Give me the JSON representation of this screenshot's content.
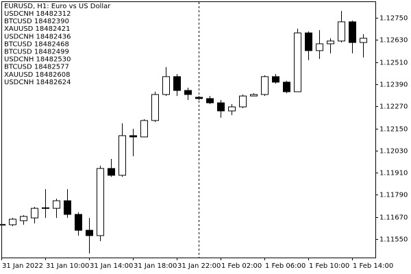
{
  "chart_data": {
    "type": "candlestick",
    "title": "EURUSD, H1:  Euro vs US Dollar",
    "annotations": [
      "USDCNH 18482312",
      "BTCUSD 18482390",
      "XAUUSD 18482421",
      "USDCNH 18482436",
      "BTCUSD 18482468",
      "BTCUSD 18482499",
      "USDCNH 18482530",
      "BTCUSD 18482577",
      "XAUUSD 18482608",
      "USDCNH 18482624"
    ],
    "categories": [
      "31 Jan 2022",
      null,
      null,
      null,
      "31 Jan 10:00",
      null,
      null,
      null,
      "31 Jan 14:00",
      null,
      null,
      null,
      "31 Jan 18:00",
      null,
      null,
      null,
      "31 Jan 22:00",
      null,
      null,
      null,
      "1 Feb 02:00",
      null,
      null,
      null,
      "1 Feb 06:00",
      null,
      null,
      null,
      "1 Feb 10:00",
      null,
      null,
      null,
      "1 Feb 14:00",
      null
    ],
    "open": [
      1.11625,
      1.11628,
      1.1165,
      1.11665,
      1.11717,
      1.11717,
      1.11758,
      1.11684,
      1.11598,
      1.11569,
      1.11933,
      1.11896,
      1.12111,
      1.12104,
      1.12193,
      1.12334,
      1.12431,
      1.12356,
      1.12319,
      1.12312,
      1.12289,
      1.12245,
      1.12267,
      1.12326,
      1.12334,
      1.12431,
      1.12401,
      1.12349,
      1.12668,
      1.12572,
      1.12609,
      1.12624,
      1.12728,
      1.12616
    ],
    "high": [
      1.11635,
      1.11665,
      1.1168,
      1.11725,
      1.11821,
      1.11769,
      1.11821,
      1.11695,
      1.11665,
      1.11948,
      1.11985,
      1.12178,
      1.12148,
      1.122,
      1.12349,
      1.12483,
      1.12445,
      1.12371,
      1.12326,
      1.12326,
      1.12304,
      1.12282,
      1.12334,
      1.12341,
      1.12438,
      1.12445,
      1.12408,
      1.12691,
      1.12676,
      1.12683,
      1.12639,
      1.12787,
      1.12735,
      1.12661
    ],
    "low": [
      1.1162,
      1.1162,
      1.11628,
      1.11635,
      1.11665,
      1.11665,
      1.11665,
      1.11569,
      1.11472,
      1.11539,
      1.11888,
      1.11888,
      1.11999,
      1.12104,
      1.12185,
      1.12326,
      1.12326,
      1.12304,
      1.12304,
      1.12282,
      1.12208,
      1.12222,
      1.1226,
      1.12326,
      1.12326,
      1.12393,
      1.12341,
      1.12349,
      1.1252,
      1.12527,
      1.12557,
      1.12616,
      1.12557,
      1.12535
    ],
    "close": [
      1.1163,
      1.11658,
      1.11673,
      1.11717,
      1.1172,
      1.11758,
      1.11684,
      1.11598,
      1.11569,
      1.11933,
      1.11896,
      1.12111,
      1.12104,
      1.12193,
      1.12334,
      1.12431,
      1.12356,
      1.12334,
      1.12312,
      1.12289,
      1.12245,
      1.12267,
      1.12326,
      1.12334,
      1.12431,
      1.12401,
      1.12349,
      1.12668,
      1.12572,
      1.12609,
      1.12624,
      1.12728,
      1.12616,
      1.12639
    ],
    "up_color": "#ffffff",
    "down_color": "#000000",
    "ylim": [
      1.1145,
      1.12839
    ],
    "yticks": [
      {
        "value": 1.1155,
        "label": "1.11550"
      },
      {
        "value": 1.1167,
        "label": "1.11670"
      },
      {
        "value": 1.1179,
        "label": "1.11790"
      },
      {
        "value": 1.1191,
        "label": "1.11910"
      },
      {
        "value": 1.1203,
        "label": "1.12030"
      },
      {
        "value": 1.1215,
        "label": "1.12150"
      },
      {
        "value": 1.1227,
        "label": "1.12270"
      },
      {
        "value": 1.1239,
        "label": "1.12390"
      },
      {
        "value": 1.1251,
        "label": "1.12510"
      },
      {
        "value": 1.1263,
        "label": "1.12630"
      },
      {
        "value": 1.1275,
        "label": "1.12750"
      }
    ],
    "grid": false
  }
}
